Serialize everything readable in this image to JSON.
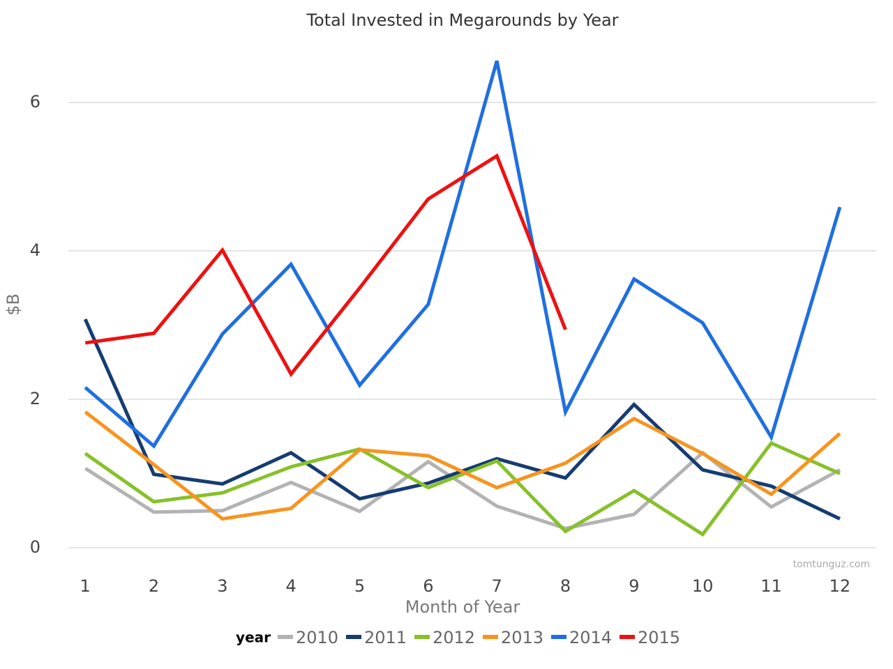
{
  "chart_data": {
    "type": "line",
    "title": "Total Invested in Megarounds by Year",
    "x_label": "Month of Year",
    "y_label": "$B",
    "legend_title": "year",
    "watermark": "tomtunguz.com",
    "x": [
      1,
      2,
      3,
      4,
      5,
      6,
      7,
      8,
      9,
      10,
      11,
      12
    ],
    "xlim": [
      0.5,
      12.5
    ],
    "xticks": [
      1,
      2,
      3,
      4,
      5,
      6,
      7,
      8,
      9,
      10,
      11,
      12
    ],
    "ylim": [
      0,
      6.7
    ],
    "yticks": [
      0,
      2,
      4,
      6
    ],
    "grid": true,
    "legend": "bottom",
    "series": [
      {
        "name": "2010",
        "color": "#b3b3b3",
        "values": [
          1.07,
          0.48,
          0.5,
          0.88,
          0.49,
          1.16,
          0.56,
          0.26,
          0.45,
          1.28,
          0.55,
          1.05
        ]
      },
      {
        "name": "2011",
        "color": "#163c72",
        "values": [
          3.08,
          0.99,
          0.86,
          1.28,
          0.66,
          0.87,
          1.2,
          0.94,
          1.93,
          1.05,
          0.83,
          0.39
        ]
      },
      {
        "name": "2012",
        "color": "#86c129",
        "values": [
          1.27,
          0.62,
          0.74,
          1.09,
          1.33,
          0.81,
          1.17,
          0.22,
          0.77,
          0.18,
          1.41,
          1.0
        ]
      },
      {
        "name": "2013",
        "color": "#f7941d",
        "values": [
          1.83,
          1.12,
          0.39,
          0.53,
          1.32,
          1.24,
          0.81,
          1.14,
          1.74,
          1.27,
          0.72,
          1.54
        ]
      },
      {
        "name": "2014",
        "color": "#1f6fe0",
        "values": [
          2.16,
          1.37,
          2.88,
          3.82,
          2.19,
          3.28,
          6.56,
          1.83,
          3.62,
          3.03,
          1.49,
          4.59
        ]
      },
      {
        "name": "2015",
        "color": "#ee1111",
        "values": [
          2.76,
          2.89,
          4.01,
          2.34,
          3.5,
          4.7,
          5.28,
          2.94,
          null,
          null,
          null,
          null
        ]
      }
    ]
  }
}
